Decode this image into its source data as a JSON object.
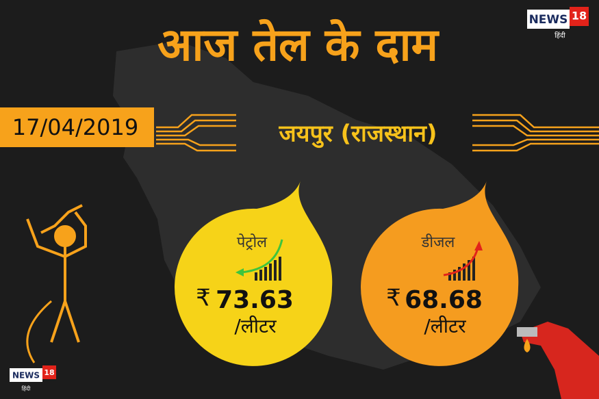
{
  "header": {
    "title": "आज तेल के दाम",
    "logo": {
      "brand": "NEWS",
      "number": "18",
      "sub": "हिंदी"
    }
  },
  "date": "17/04/2019",
  "location": "जयपुर (राजस्थान)",
  "prices": [
    {
      "fuel": "पेट्रोल",
      "currency": "₹",
      "price": 73.63,
      "unit": "/लीटर"
    },
    {
      "fuel": "डीजल",
      "currency": "₹",
      "price": 68.68,
      "unit": "/लीटर"
    }
  ],
  "footer_logo": {
    "brand": "NEWS",
    "number": "18",
    "sub": "हिंदी"
  }
}
